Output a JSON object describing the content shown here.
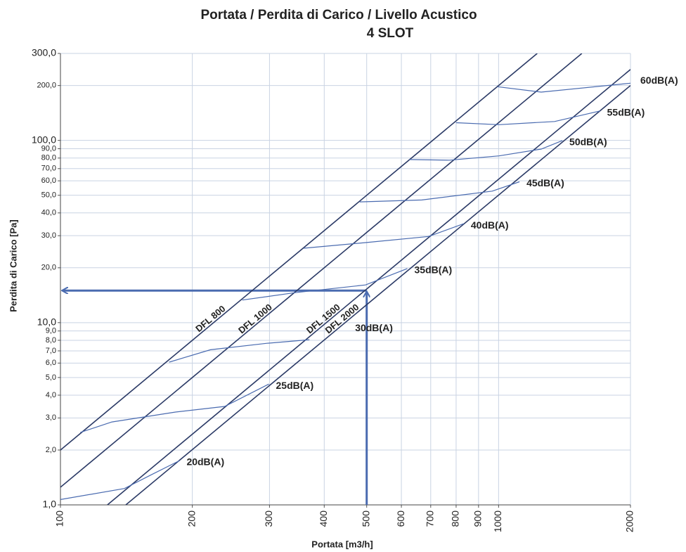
{
  "chart_data": {
    "type": "line",
    "title": "Portata / Perdita di Carico / Livello Acustico",
    "subtitle": "4 SLOT",
    "x_label": "Portata [m3/h]",
    "y_label": "Perdita di Carico [Pa]",
    "log_x": true,
    "log_y": true,
    "grid": true,
    "xlim": [
      100,
      2000
    ],
    "ylim": [
      1,
      300
    ],
    "xticks": [
      100,
      200,
      300,
      400,
      500,
      600,
      700,
      800,
      900,
      1000,
      2000
    ],
    "yticks": [
      {
        "value": 1,
        "label": "1,0"
      },
      {
        "value": 2,
        "label": "2,0"
      },
      {
        "value": 3,
        "label": "3,0"
      },
      {
        "value": 4,
        "label": "4,0"
      },
      {
        "value": 5,
        "label": "5,0"
      },
      {
        "value": 6,
        "label": "6,0"
      },
      {
        "value": 7,
        "label": "7,0"
      },
      {
        "value": 8,
        "label": "8,0"
      },
      {
        "value": 9,
        "label": "9,0"
      },
      {
        "value": 10,
        "label": "10,0"
      },
      {
        "value": 20,
        "label": "20,0"
      },
      {
        "value": 30,
        "label": "30,0"
      },
      {
        "value": 40,
        "label": "40,0"
      },
      {
        "value": 50,
        "label": "50,0"
      },
      {
        "value": 60,
        "label": "60,0"
      },
      {
        "value": 70,
        "label": "70,0"
      },
      {
        "value": 80,
        "label": "80,0"
      },
      {
        "value": 90,
        "label": "90,0"
      },
      {
        "value": 100,
        "label": "100,0"
      },
      {
        "value": 200,
        "label": "200,0"
      },
      {
        "value": 300,
        "label": "300,0"
      }
    ],
    "series": [
      {
        "name": "DFL 800",
        "color": "#2b3a66",
        "x": [
          100,
          1225
        ],
        "values": [
          2,
          300
        ]
      },
      {
        "name": "DFL 1000",
        "color": "#2b3a66",
        "x": [
          100,
          1549
        ],
        "values": [
          1.25,
          300
        ]
      },
      {
        "name": "DFL 1500",
        "color": "#2b3a66",
        "x": [
          128,
          2000
        ],
        "values": [
          1,
          245
        ]
      },
      {
        "name": "DFL 2000",
        "color": "#2b3a66",
        "x": [
          141,
          2000
        ],
        "values": [
          1,
          200
        ]
      },
      {
        "name": "20dB(A)",
        "color": "#4a6bb0",
        "x": [
          100,
          140,
          160,
          187
        ],
        "values": [
          1.07,
          1.23,
          1.45,
          1.75
        ]
      },
      {
        "name": "25dB(A)",
        "color": "#4a6bb0",
        "x": [
          111,
          131,
          183,
          237,
          299
        ],
        "values": [
          2.5,
          2.85,
          3.23,
          3.47,
          4.6
        ]
      },
      {
        "name": "30dB(A)",
        "color": "#4a6bb0",
        "x": [
          177,
          220,
          296,
          370
        ],
        "values": [
          6.07,
          7.1,
          7.7,
          8.06
        ]
      },
      {
        "name": "35dB(A)",
        "color": "#4a6bb0",
        "x": [
          260,
          343,
          497,
          619
        ],
        "values": [
          13.3,
          14.6,
          16.1,
          19.8
        ]
      },
      {
        "name": "40dB(A)",
        "color": "#4a6bb0",
        "x": [
          359,
          497,
          692,
          833
        ],
        "values": [
          25.6,
          27.5,
          29.7,
          34.9
        ]
      },
      {
        "name": "45dB(A)",
        "color": "#4a6bb0",
        "x": [
          482,
          668,
          967,
          1116
        ],
        "values": [
          46,
          47.1,
          52.7,
          59.3
        ]
      },
      {
        "name": "50dB(A)",
        "color": "#4a6bb0",
        "x": [
          626,
          772,
          1002,
          1251,
          1398
        ],
        "values": [
          78.5,
          77.9,
          82.2,
          89.6,
          99.8
        ]
      },
      {
        "name": "55dB(A)",
        "color": "#4a6bb0",
        "x": [
          800,
          1002,
          1342,
          1704
        ],
        "values": [
          125,
          122,
          127,
          145
        ]
      },
      {
        "name": "60dB(A)",
        "color": "#4a6bb0",
        "x": [
          994,
          1251,
          2000
        ],
        "values": [
          197,
          184,
          206
        ]
      }
    ],
    "guide": {
      "x": 500,
      "y": 15,
      "color": "#4a6bb0"
    }
  }
}
